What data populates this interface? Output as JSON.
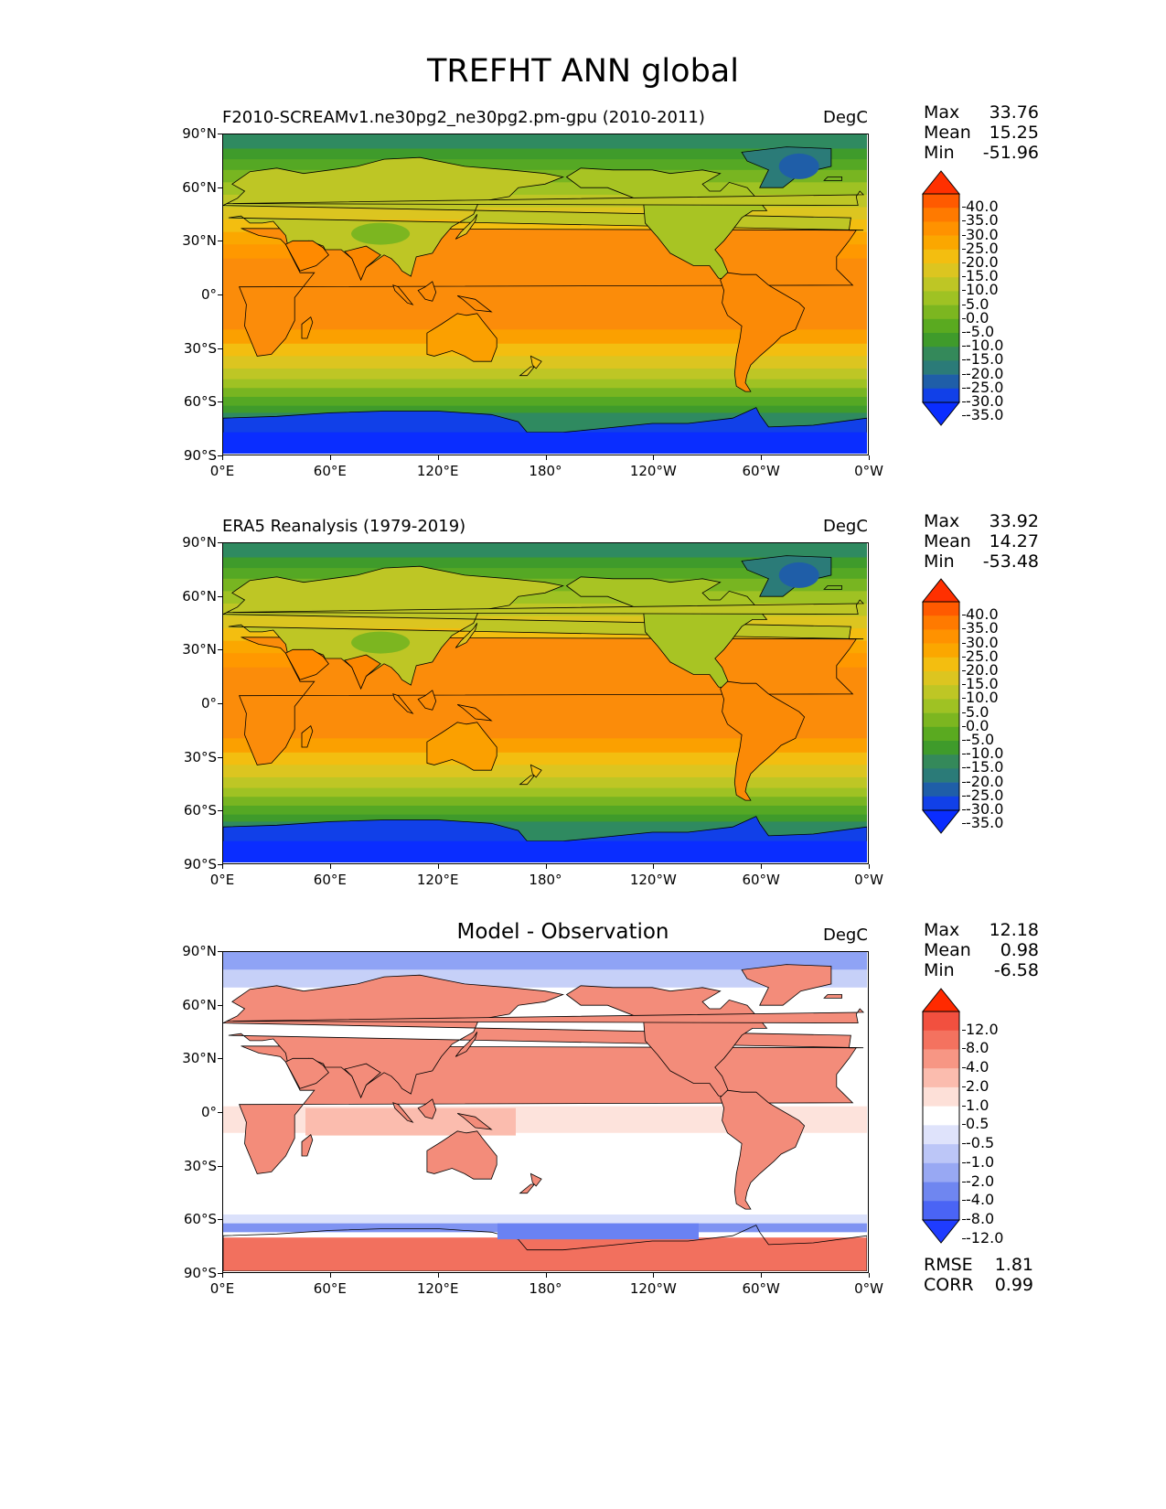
{
  "title": "TREFHT ANN global",
  "lat_ticks": [
    "90°N",
    "60°N",
    "30°N",
    "0°",
    "30°S",
    "60°S",
    "90°S"
  ],
  "lon_ticks": [
    "0°E",
    "60°E",
    "120°E",
    "180°",
    "120°W",
    "60°W",
    "0°W"
  ],
  "panels": [
    {
      "name": "model",
      "title": "F2010-SCREAMv1.ne30pg2_ne30pg2.pm-gpu (2010-2011)",
      "title_style": "left",
      "units": "DegC",
      "stats": {
        "max_label": "Max",
        "max": "33.76",
        "mean_label": "Mean",
        "mean": "15.25",
        "min_label": "Min",
        "min": "-51.96"
      },
      "colorbar": {
        "labels": [
          "40.0",
          "35.0",
          "30.0",
          "25.0",
          "20.0",
          "15.0",
          "10.0",
          "5.0",
          "0.0",
          "-5.0",
          "-10.0",
          "-15.0",
          "-20.0",
          "-25.0",
          "-30.0",
          "-35.0"
        ],
        "colors": [
          "#ff3000",
          "#ff5a00",
          "#ff7a00",
          "#ff9200",
          "#fba700",
          "#f3be10",
          "#dcc520",
          "#bec625",
          "#9fc223",
          "#7cb620",
          "#5aaa20",
          "#3f9b2b",
          "#34895a",
          "#2b7b78",
          "#1f5ea8",
          "#1140e8",
          "#0a2dff"
        ]
      }
    },
    {
      "name": "obs",
      "title": "ERA5 Reanalysis (1979-2019)",
      "title_style": "left",
      "units": "DegC",
      "stats": {
        "max_label": "Max",
        "max": "33.92",
        "mean_label": "Mean",
        "mean": "14.27",
        "min_label": "Min",
        "min": "-53.48"
      },
      "colorbar": {
        "labels": [
          "40.0",
          "35.0",
          "30.0",
          "25.0",
          "20.0",
          "15.0",
          "10.0",
          "5.0",
          "0.0",
          "-5.0",
          "-10.0",
          "-15.0",
          "-20.0",
          "-25.0",
          "-30.0",
          "-35.0"
        ],
        "colors": [
          "#ff3000",
          "#ff5a00",
          "#ff7a00",
          "#ff9200",
          "#fba700",
          "#f3be10",
          "#dcc520",
          "#bec625",
          "#9fc223",
          "#7cb620",
          "#5aaa20",
          "#3f9b2b",
          "#34895a",
          "#2b7b78",
          "#1f5ea8",
          "#1140e8",
          "#0a2dff"
        ]
      }
    },
    {
      "name": "diff",
      "title": "Model - Observation",
      "title_style": "center",
      "units": "DegC",
      "stats": {
        "max_label": "Max",
        "max": "12.18",
        "mean_label": "Mean",
        "mean": "0.98",
        "min_label": "Min",
        "min": "-6.58"
      },
      "metrics": {
        "rmse_label": "RMSE",
        "rmse": "1.81",
        "corr_label": "CORR",
        "corr": "0.99"
      },
      "colorbar": {
        "labels": [
          "12.0",
          "8.0",
          "4.0",
          "2.0",
          "1.0",
          "0.5",
          "-0.5",
          "-1.0",
          "-2.0",
          "-4.0",
          "-8.0",
          "-12.0"
        ],
        "colors": [
          "#ff2a00",
          "#f2503f",
          "#f4725f",
          "#f79684",
          "#fbbcae",
          "#fde0d8",
          "#ffffff",
          "#dfe3fb",
          "#bcc6f7",
          "#98a8f3",
          "#6f86f0",
          "#4a64f5",
          "#1f3cff"
        ]
      }
    }
  ]
}
